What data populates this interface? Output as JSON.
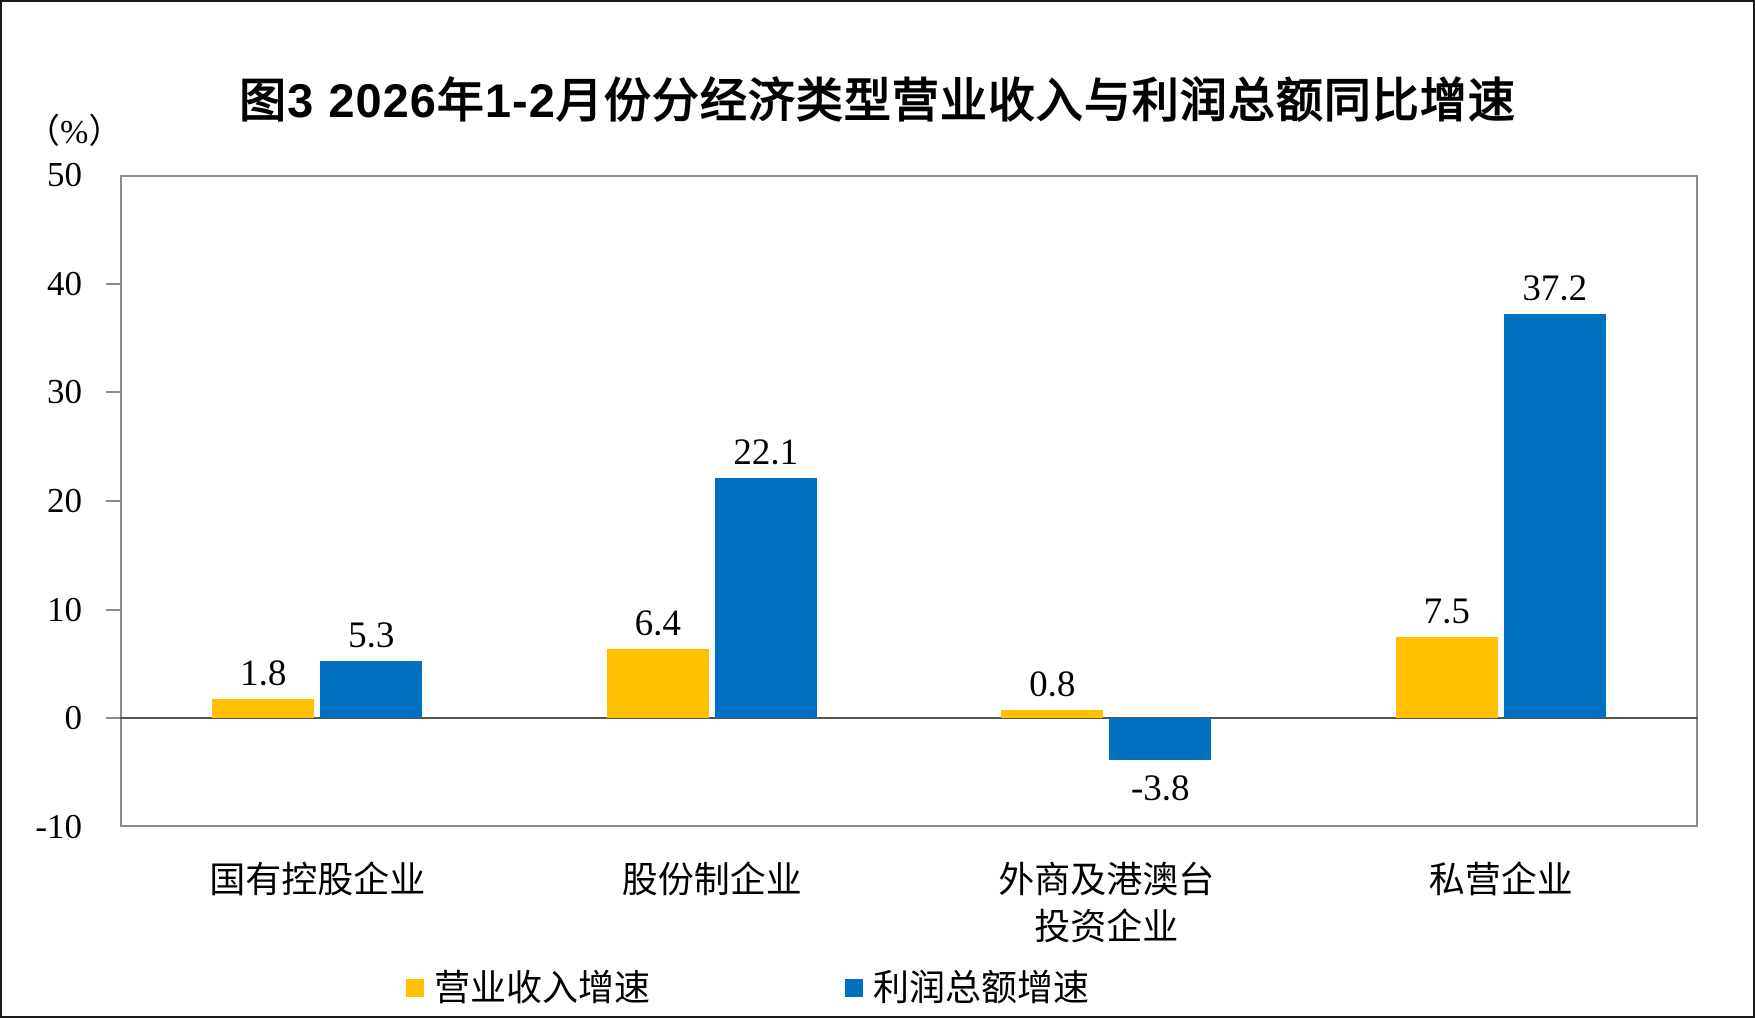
{
  "chart_data": {
    "type": "bar",
    "title": "图3 2026年1-2月份分经济类型营业收入与利润总额同比增速",
    "unit_label": "（%）",
    "categories": [
      "国有控股企业",
      "股份制企业",
      "外商及港澳台\n投资企业",
      "私营企业"
    ],
    "series": [
      {
        "name": "营业收入增速",
        "color": "#FFC000",
        "values": [
          1.8,
          6.4,
          0.8,
          7.5
        ]
      },
      {
        "name": "利润总额增速",
        "color": "#0070C0",
        "values": [
          5.3,
          22.1,
          -3.8,
          37.2
        ]
      }
    ],
    "ylim": [
      -10,
      50
    ],
    "yticks": [
      50,
      40,
      30,
      20,
      10,
      0,
      -10
    ],
    "grid": false,
    "legend_position": "bottom",
    "axis_color": "#8a8a8a",
    "zero_line_color": "#555555"
  }
}
